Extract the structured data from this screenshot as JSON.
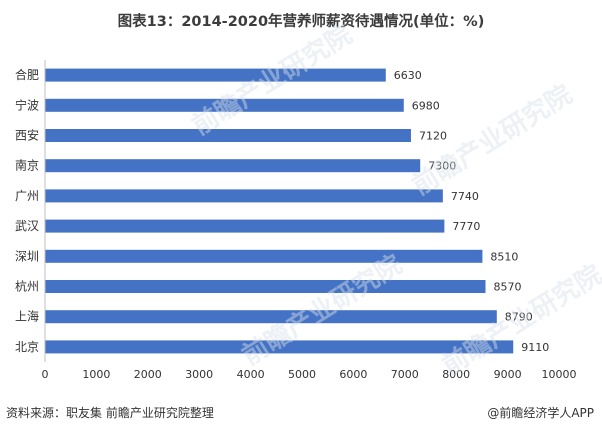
{
  "title": "图表13：2014-2020年营养师薪资待遇情况(单位：%)",
  "source": "资料来源：职友集 前瞻产业研究院整理",
  "brand": "@前瞻经济学人APP",
  "watermark": "前瞻产业研究院",
  "colors": {
    "bar": "#4472c4",
    "axis": "#bfbfbf",
    "text": "#333333"
  },
  "chart_data": {
    "type": "bar",
    "orientation": "horizontal",
    "title": "图表13：2014-2020年营养师薪资待遇情况(单位：%)",
    "categories": [
      "合肥",
      "宁波",
      "西安",
      "南京",
      "广州",
      "武汉",
      "深圳",
      "杭州",
      "上海",
      "北京"
    ],
    "values": [
      6630,
      6980,
      7120,
      7300,
      7740,
      7770,
      8510,
      8570,
      8790,
      9110
    ],
    "xlim": [
      0,
      10000
    ],
    "xticks": [
      0,
      1000,
      2000,
      3000,
      4000,
      5000,
      6000,
      7000,
      8000,
      9000,
      10000
    ],
    "grid": false,
    "legend": "none",
    "data_labels": true
  }
}
